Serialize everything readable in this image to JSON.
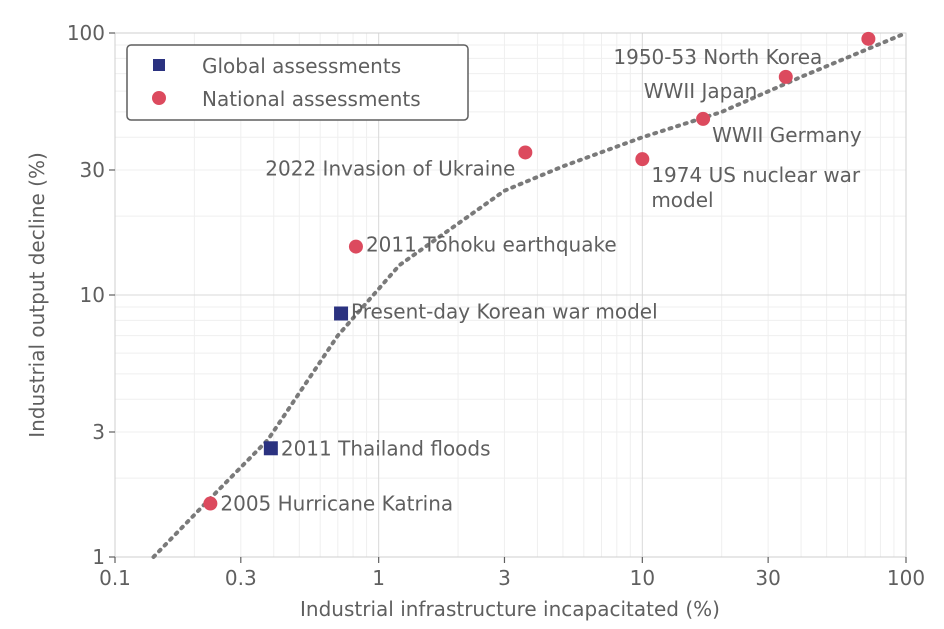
{
  "chart_data": {
    "type": "scatter",
    "title": "",
    "xlabel": "Industrial infrastructure incapacitated (%)",
    "ylabel": "Industrial output decline (%)",
    "xscale": "log",
    "yscale": "log",
    "xlim": [
      0.1,
      100
    ],
    "ylim": [
      1,
      100
    ],
    "xticks": [
      {
        "value": 0.1,
        "label": "0.1"
      },
      {
        "value": 0.3,
        "label": "0.3"
      },
      {
        "value": 1,
        "label": "1"
      },
      {
        "value": 3,
        "label": "3"
      },
      {
        "value": 10,
        "label": "10"
      },
      {
        "value": 30,
        "label": "30"
      },
      {
        "value": 100,
        "label": "100"
      }
    ],
    "yticks": [
      {
        "value": 1,
        "label": "1"
      },
      {
        "value": 3,
        "label": "3"
      },
      {
        "value": 10,
        "label": "10"
      },
      {
        "value": 30,
        "label": "30"
      },
      {
        "value": 100,
        "label": "100"
      }
    ],
    "grid": true,
    "legend_position": "top-left",
    "series": [
      {
        "name": "Global assessments",
        "marker": "square",
        "color": "#2b3280",
        "points": [
          {
            "x": 0.39,
            "y": 2.6,
            "label": "2011 Thailand floods"
          },
          {
            "x": 0.72,
            "y": 8.5,
            "label": "Present-day Korean war model"
          }
        ]
      },
      {
        "name": "National assessments",
        "marker": "circle",
        "color": "#dc4a5e",
        "points": [
          {
            "x": 0.23,
            "y": 1.6,
            "label": "2005 Hurricane Katrina"
          },
          {
            "x": 0.82,
            "y": 15.3,
            "label": "2011 Tōhoku earthquake"
          },
          {
            "x": 3.6,
            "y": 35.0,
            "label": "2022 Invasion of Ukraine"
          },
          {
            "x": 10.0,
            "y": 33.0,
            "label": "1974 US nuclear war model"
          },
          {
            "x": 17.0,
            "y": 47.0,
            "label": "WWII Germany"
          },
          {
            "x": 35.0,
            "y": 68.0,
            "label": "WWII Japan"
          },
          {
            "x": 72.0,
            "y": 95.0,
            "label": "1950-53 North Korea"
          }
        ]
      }
    ],
    "trend": {
      "style": "dotted",
      "color": "#7a7a7a",
      "points": [
        {
          "x": 0.14,
          "y": 1.0
        },
        {
          "x": 0.22,
          "y": 1.6
        },
        {
          "x": 0.38,
          "y": 2.8
        },
        {
          "x": 0.7,
          "y": 7.0
        },
        {
          "x": 1.2,
          "y": 13.0
        },
        {
          "x": 3.0,
          "y": 25.0
        },
        {
          "x": 5.0,
          "y": 31.0
        },
        {
          "x": 10.0,
          "y": 40.0
        },
        {
          "x": 20.0,
          "y": 50.0
        },
        {
          "x": 40.0,
          "y": 68.0
        },
        {
          "x": 100.0,
          "y": 100.0
        }
      ]
    }
  }
}
